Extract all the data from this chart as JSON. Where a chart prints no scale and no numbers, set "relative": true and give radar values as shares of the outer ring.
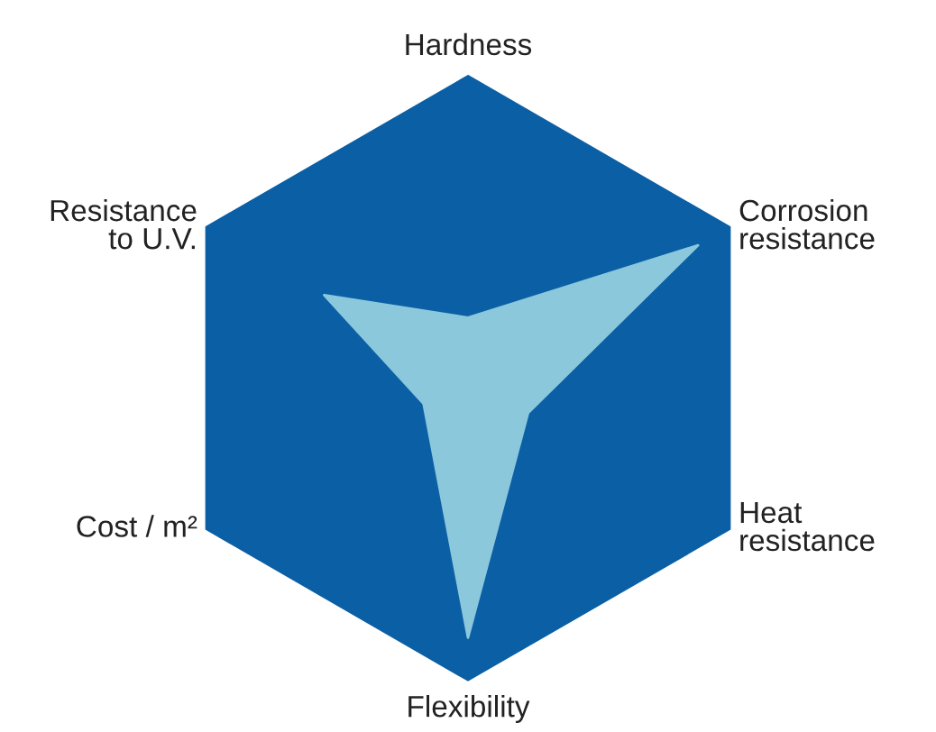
{
  "chart_data": {
    "type": "radar",
    "relative": true,
    "categories": [
      "Hardness",
      "Corrosion\nresistance",
      "Heat\nresistance",
      "Flexibility",
      "Cost / m²",
      "Resistance\nto U.V."
    ],
    "series": [
      {
        "color": "#8cc8dc",
        "values": [
          0.2,
          0.88,
          0.23,
          0.86,
          0.17,
          0.55
        ]
      }
    ]
  }
}
